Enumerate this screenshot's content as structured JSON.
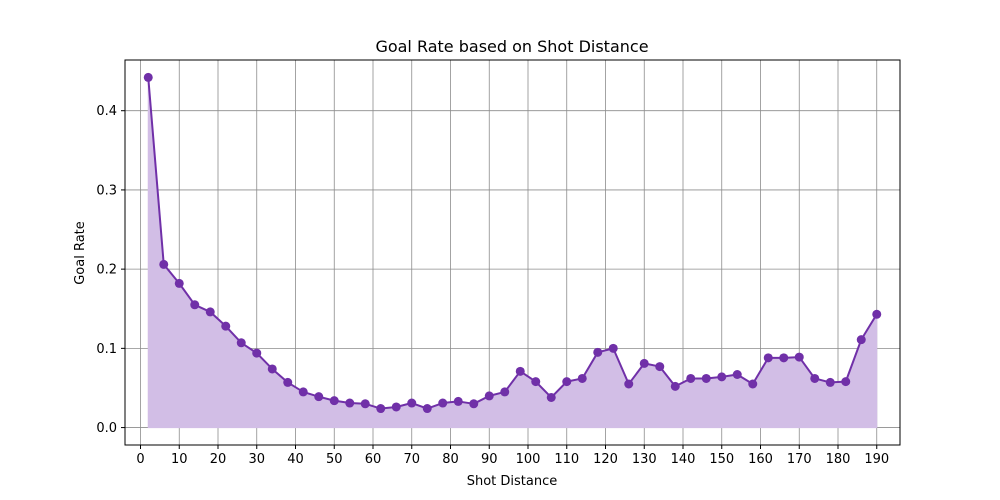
{
  "chart_data": {
    "type": "line",
    "title": "Goal Rate based on Shot Distance",
    "xlabel": "Shot Distance",
    "ylabel": "Goal Rate",
    "xlim": [
      -4,
      196
    ],
    "ylim": [
      -0.022,
      0.464
    ],
    "xticks": [
      0,
      10,
      20,
      30,
      40,
      50,
      60,
      70,
      80,
      90,
      100,
      110,
      120,
      130,
      140,
      150,
      160,
      170,
      180,
      190
    ],
    "yticks": [
      0.0,
      0.1,
      0.2,
      0.3,
      0.4
    ],
    "ytick_labels": [
      "0.0",
      "0.1",
      "0.2",
      "0.3",
      "0.4"
    ],
    "grid": true,
    "filled_area": true,
    "colors": {
      "line": "#7030a8",
      "fill": "#d2bee6"
    },
    "x": [
      2,
      6,
      10,
      14,
      18,
      22,
      26,
      30,
      34,
      38,
      42,
      46,
      50,
      54,
      58,
      62,
      66,
      70,
      74,
      78,
      82,
      86,
      90,
      94,
      98,
      102,
      106,
      110,
      114,
      118,
      122,
      126,
      130,
      134,
      138,
      142,
      146,
      150,
      154,
      158,
      162,
      166,
      170,
      174,
      178,
      182,
      186,
      190
    ],
    "y": [
      0.442,
      0.206,
      0.182,
      0.155,
      0.146,
      0.128,
      0.107,
      0.094,
      0.074,
      0.057,
      0.045,
      0.039,
      0.034,
      0.031,
      0.03,
      0.024,
      0.026,
      0.031,
      0.024,
      0.031,
      0.033,
      0.03,
      0.04,
      0.045,
      0.071,
      0.058,
      0.038,
      0.058,
      0.062,
      0.095,
      0.1,
      0.055,
      0.081,
      0.077,
      0.052,
      0.062,
      0.062,
      0.064,
      0.067,
      0.055,
      0.088,
      0.088,
      0.089,
      0.062,
      0.057,
      0.058,
      0.111,
      0.143
    ]
  }
}
